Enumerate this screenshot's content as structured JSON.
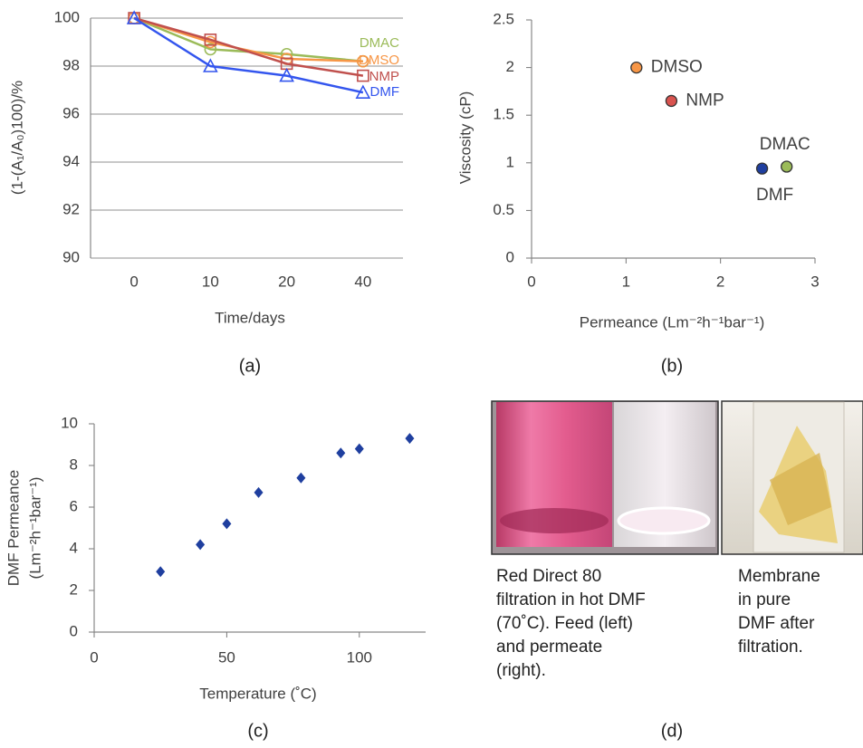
{
  "chart_data": [
    {
      "type": "line",
      "panel_label": "(a)",
      "xlabel": "Time/days",
      "ylabel": "(1-(A₁/A₀)100)/%",
      "categories": [
        "0",
        "10",
        "20",
        "40"
      ],
      "series": [
        {
          "name": "DMAC",
          "color": "#9bbb59",
          "marker": "circle",
          "values": [
            100,
            98.7,
            98.5,
            98.2
          ]
        },
        {
          "name": "DMSO",
          "color": "#f79646",
          "marker": "circle",
          "values": [
            100,
            99.0,
            98.3,
            98.2
          ]
        },
        {
          "name": "NMP",
          "color": "#c0504d",
          "marker": "square",
          "values": [
            100,
            99.1,
            98.1,
            97.6
          ]
        },
        {
          "name": "DMF",
          "color": "#3355ee",
          "marker": "triangle",
          "values": [
            100,
            98.0,
            97.6,
            96.9
          ]
        }
      ],
      "ylim": [
        90,
        100
      ],
      "yticks": [
        90,
        92,
        94,
        96,
        98,
        100
      ],
      "grid": true
    },
    {
      "type": "scatter",
      "panel_label": "(b)",
      "xlabel": "Permeance (Lm⁻²h⁻¹bar⁻¹)",
      "ylabel": "Viscosity (cP)",
      "series": [
        {
          "name": "DMSO",
          "color": "#f79646",
          "x": [
            1.11
          ],
          "values": [
            2.0
          ]
        },
        {
          "name": "NMP",
          "color": "#d9534f",
          "x": [
            1.48
          ],
          "values": [
            1.65
          ]
        },
        {
          "name": "DMAC",
          "color": "#9bbb59",
          "x": [
            2.7
          ],
          "values": [
            0.96
          ]
        },
        {
          "name": "DMF",
          "color": "#1f3f9f",
          "x": [
            2.44
          ],
          "values": [
            0.94
          ]
        }
      ],
      "xlim": [
        0,
        3
      ],
      "xticks": [
        0,
        1,
        2,
        3
      ],
      "ylim": [
        0,
        2.5
      ],
      "yticks": [
        0,
        0.5,
        1,
        1.5,
        2,
        2.5
      ],
      "grid": false
    },
    {
      "type": "scatter",
      "panel_label": "(c)",
      "xlabel": "Temperature (˚C)",
      "ylabel": [
        "DMF Permeance",
        "(Lm⁻²h⁻¹bar⁻¹)"
      ],
      "marker": "diamond",
      "series": [
        {
          "color": "#1f3f9f",
          "x": [
            25,
            40,
            50,
            62,
            78,
            93,
            100,
            119
          ],
          "values": [
            2.9,
            4.2,
            5.2,
            6.7,
            7.4,
            8.6,
            8.8,
            9.3
          ]
        }
      ],
      "xlim": [
        0,
        125
      ],
      "xticks": [
        0,
        50,
        100
      ],
      "ylim": [
        0,
        10
      ],
      "yticks": [
        0,
        2,
        4,
        6,
        8,
        10
      ],
      "grid": false
    }
  ],
  "photo_panel": {
    "label": "(d)",
    "captions": [
      [
        "Red Direct 80",
        "filtration in hot DMF",
        "(70˚C). Feed (left)",
        "and permeate",
        "(right)."
      ],
      [
        "Membrane",
        "in pure",
        "DMF after",
        "filtration."
      ]
    ]
  }
}
